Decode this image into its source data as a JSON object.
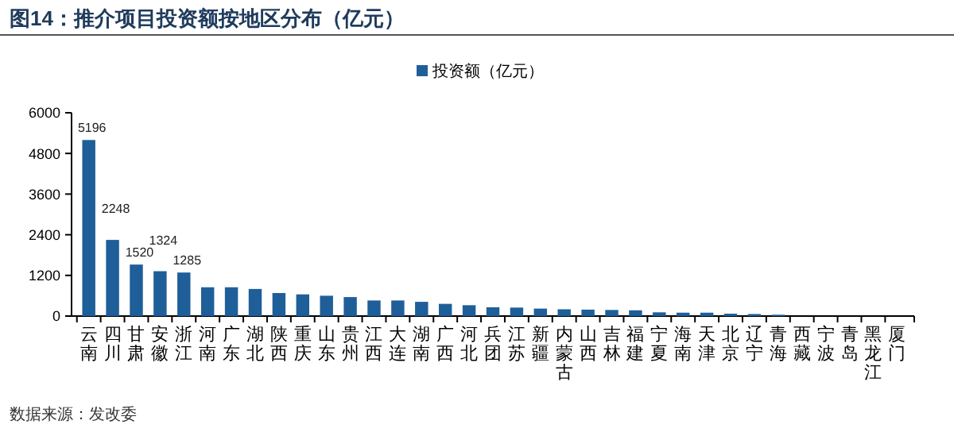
{
  "chart_data": {
    "type": "bar",
    "title": "图14：推介项目投资额按地区分布（亿元）",
    "categories": [
      "云南",
      "四川",
      "甘肃",
      "安徽",
      "浙江",
      "河南",
      "广东",
      "湖北",
      "陕西",
      "重庆",
      "山东",
      "贵州",
      "江西",
      "大连",
      "湖南",
      "广西",
      "河北",
      "兵团",
      "江苏",
      "新疆",
      "内蒙古",
      "山西",
      "吉林",
      "福建",
      "宁夏",
      "海南",
      "天津",
      "北京",
      "辽宁",
      "青海",
      "西藏",
      "宁波",
      "青岛",
      "黑龙江",
      "厦门"
    ],
    "series": [
      {
        "name": "投资额（亿元）",
        "color": "#1f5f99",
        "values": [
          5196,
          2248,
          1520,
          1324,
          1285,
          850,
          850,
          800,
          680,
          640,
          600,
          560,
          460,
          460,
          420,
          360,
          320,
          260,
          250,
          220,
          200,
          190,
          180,
          170,
          110,
          100,
          100,
          70,
          60,
          40,
          0,
          0,
          0,
          0,
          0
        ],
        "value_labels": [
          "5196",
          "2248",
          "1520",
          "1324",
          "1285",
          null,
          null,
          null,
          null,
          null,
          null,
          null,
          null,
          null,
          null,
          null,
          null,
          null,
          null,
          null,
          null,
          null,
          null,
          null,
          null,
          null,
          null,
          null,
          null,
          null,
          null,
          null,
          null,
          null,
          null
        ]
      }
    ],
    "ylim": [
      0,
      6000
    ],
    "yticks": [
      0,
      1200,
      2400,
      3600,
      4800,
      6000
    ],
    "grid": false,
    "legend": "top",
    "annotations": [
      "数据来源：发改委"
    ]
  }
}
